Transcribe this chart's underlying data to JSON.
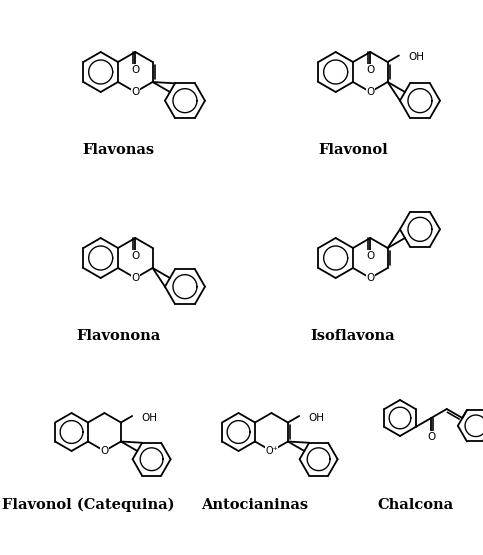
{
  "background_color": "#ffffff",
  "labels": [
    "Flavonas",
    "Flavonol",
    "Flavonona",
    "Isoflavona",
    "Flavonol (Catequina)",
    "Antocianinas",
    "Chalcona"
  ],
  "label_fontsize": 10.5,
  "figsize": [
    4.83,
    5.55
  ],
  "dpi": 100,
  "lw": 1.3
}
